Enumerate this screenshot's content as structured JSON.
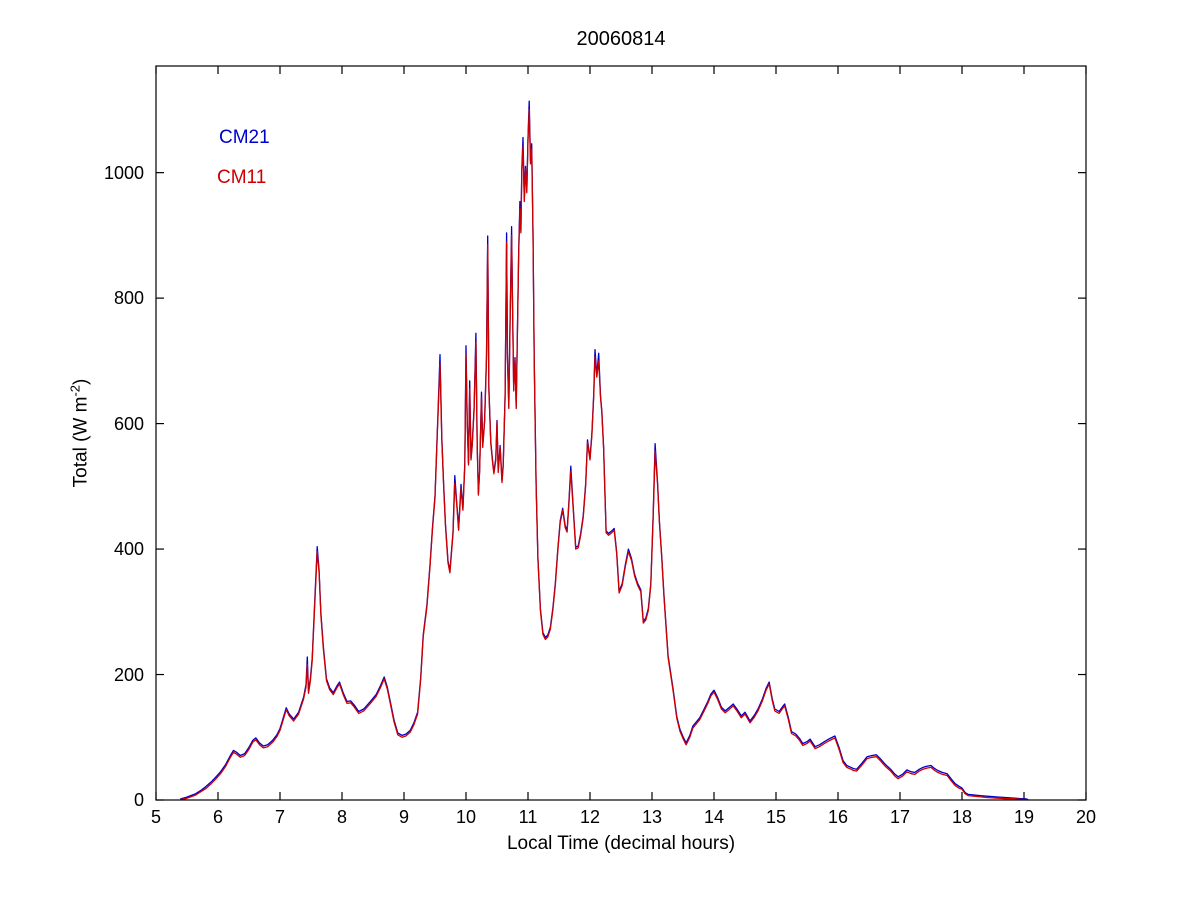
{
  "figure": {
    "title": "20060814",
    "xlabel": "Local Time (decimal hours)",
    "ylabel_main": "Total (W m",
    "ylabel_sup": "-2",
    "ylabel_end": ")",
    "background_color": "#ffffff",
    "axis_color": "#000000"
  },
  "legend": {
    "entries": [
      {
        "label": "CM21",
        "color": "#0000CC"
      },
      {
        "label": "CM11",
        "color": "#CC0000"
      }
    ]
  },
  "chart_data": {
    "type": "line",
    "title": "20060814",
    "xlabel": "Local Time (decimal hours)",
    "ylabel": "Total (W m^-2)",
    "xlim": [
      5,
      20
    ],
    "ylim": [
      0,
      1170
    ],
    "xticks": [
      5,
      6,
      7,
      8,
      9,
      10,
      11,
      12,
      13,
      14,
      15,
      16,
      17,
      18,
      19,
      20
    ],
    "yticks": [
      0,
      200,
      400,
      600,
      800,
      1000
    ],
    "grid": false,
    "tick_direction": "in",
    "box": true,
    "legend_position": "upper-left-inside",
    "series_names": [
      "CM21",
      "CM11"
    ],
    "series_colors": [
      "#0000CC",
      "#CC0000"
    ],
    "points_format": [
      "time_decimal_hours",
      "CM11_W_m2",
      "CM21_W_m2"
    ],
    "points": [
      [
        5.4,
        1,
        2
      ],
      [
        5.48,
        2,
        4
      ],
      [
        5.56,
        5,
        7
      ],
      [
        5.64,
        8,
        10
      ],
      [
        5.72,
        13,
        15
      ],
      [
        5.8,
        18,
        21
      ],
      [
        5.88,
        25,
        28
      ],
      [
        5.96,
        33,
        36
      ],
      [
        6.04,
        42,
        45
      ],
      [
        6.12,
        53,
        56
      ],
      [
        6.2,
        68,
        71
      ],
      [
        6.25,
        76,
        79
      ],
      [
        6.3,
        73,
        76
      ],
      [
        6.36,
        68,
        71
      ],
      [
        6.43,
        71,
        74
      ],
      [
        6.5,
        81,
        84
      ],
      [
        6.56,
        92,
        95
      ],
      [
        6.61,
        96,
        99
      ],
      [
        6.67,
        88,
        91
      ],
      [
        6.73,
        83,
        86
      ],
      [
        6.8,
        85,
        88
      ],
      [
        6.88,
        92,
        95
      ],
      [
        6.95,
        101,
        104
      ],
      [
        7.0,
        111,
        114
      ],
      [
        7.05,
        127,
        130
      ],
      [
        7.1,
        144,
        147
      ],
      [
        7.15,
        134,
        137
      ],
      [
        7.22,
        126,
        129
      ],
      [
        7.3,
        137,
        140
      ],
      [
        7.38,
        161,
        164
      ],
      [
        7.42,
        180,
        184
      ],
      [
        7.44,
        216,
        228
      ],
      [
        7.46,
        170,
        174
      ],
      [
        7.49,
        190,
        194
      ],
      [
        7.52,
        222,
        226
      ],
      [
        7.56,
        310,
        316
      ],
      [
        7.6,
        396,
        404
      ],
      [
        7.63,
        362,
        366
      ],
      [
        7.66,
        294,
        298
      ],
      [
        7.7,
        240,
        244
      ],
      [
        7.75,
        190,
        193
      ],
      [
        7.8,
        176,
        179
      ],
      [
        7.86,
        168,
        171
      ],
      [
        7.92,
        179,
        182
      ],
      [
        7.96,
        185,
        188
      ],
      [
        8.02,
        168,
        171
      ],
      [
        8.08,
        154,
        157
      ],
      [
        8.14,
        155,
        158
      ],
      [
        8.2,
        148,
        151
      ],
      [
        8.27,
        138,
        141
      ],
      [
        8.35,
        142,
        145
      ],
      [
        8.45,
        153,
        156
      ],
      [
        8.55,
        165,
        168
      ],
      [
        8.62,
        179,
        182
      ],
      [
        8.68,
        193,
        196
      ],
      [
        8.73,
        177,
        180
      ],
      [
        8.78,
        153,
        156
      ],
      [
        8.84,
        124,
        127
      ],
      [
        8.9,
        104,
        107
      ],
      [
        8.97,
        100,
        103
      ],
      [
        9.03,
        102,
        105
      ],
      [
        9.1,
        108,
        111
      ],
      [
        9.16,
        120,
        123
      ],
      [
        9.22,
        137,
        140
      ],
      [
        9.27,
        192,
        195
      ],
      [
        9.31,
        260,
        263
      ],
      [
        9.37,
        308,
        311
      ],
      [
        9.42,
        372,
        375
      ],
      [
        9.46,
        432,
        435
      ],
      [
        9.5,
        482,
        485
      ],
      [
        9.54,
        592,
        596
      ],
      [
        9.58,
        695,
        710
      ],
      [
        9.61,
        574,
        578
      ],
      [
        9.64,
        498,
        501
      ],
      [
        9.67,
        436,
        439
      ],
      [
        9.71,
        378,
        381
      ],
      [
        9.74,
        362,
        365
      ],
      [
        9.79,
        424,
        427
      ],
      [
        9.82,
        505,
        517
      ],
      [
        9.85,
        472,
        475
      ],
      [
        9.88,
        430,
        433
      ],
      [
        9.92,
        497,
        503
      ],
      [
        9.95,
        462,
        465
      ],
      [
        9.98,
        532,
        536
      ],
      [
        10.0,
        710,
        724
      ],
      [
        10.02,
        602,
        606
      ],
      [
        10.04,
        534,
        537
      ],
      [
        10.06,
        656,
        668
      ],
      [
        10.08,
        542,
        545
      ],
      [
        10.1,
        564,
        567
      ],
      [
        10.13,
        622,
        626
      ],
      [
        10.16,
        730,
        744
      ],
      [
        10.18,
        562,
        566
      ],
      [
        10.2,
        486,
        489
      ],
      [
        10.22,
        522,
        525
      ],
      [
        10.25,
        642,
        650
      ],
      [
        10.27,
        562,
        565
      ],
      [
        10.3,
        602,
        605
      ],
      [
        10.33,
        702,
        708
      ],
      [
        10.35,
        885,
        899
      ],
      [
        10.37,
        652,
        656
      ],
      [
        10.4,
        568,
        571
      ],
      [
        10.43,
        536,
        539
      ],
      [
        10.45,
        520,
        523
      ],
      [
        10.48,
        542,
        545
      ],
      [
        10.5,
        602,
        605
      ],
      [
        10.52,
        522,
        525
      ],
      [
        10.55,
        562,
        565
      ],
      [
        10.58,
        506,
        509
      ],
      [
        10.6,
        532,
        535
      ],
      [
        10.63,
        642,
        646
      ],
      [
        10.655,
        890,
        904
      ],
      [
        10.67,
        702,
        706
      ],
      [
        10.69,
        624,
        627
      ],
      [
        10.71,
        752,
        756
      ],
      [
        10.735,
        900,
        914
      ],
      [
        10.75,
        792,
        796
      ],
      [
        10.77,
        652,
        655
      ],
      [
        10.79,
        702,
        705
      ],
      [
        10.81,
        624,
        627
      ],
      [
        10.83,
        752,
        756
      ],
      [
        10.85,
        872,
        876
      ],
      [
        10.87,
        942,
        954
      ],
      [
        10.885,
        904,
        907
      ],
      [
        10.9,
        1002,
        1006
      ],
      [
        10.92,
        1042,
        1056
      ],
      [
        10.94,
        954,
        957
      ],
      [
        10.96,
        1006,
        1010
      ],
      [
        10.98,
        968,
        971
      ],
      [
        11.0,
        1052,
        1056
      ],
      [
        11.02,
        1100,
        1114
      ],
      [
        11.04,
        1014,
        1018
      ],
      [
        11.06,
        1038,
        1046
      ],
      [
        11.08,
        902,
        905
      ],
      [
        11.1,
        702,
        705
      ],
      [
        11.13,
        502,
        505
      ],
      [
        11.16,
        384,
        387
      ],
      [
        11.2,
        302,
        305
      ],
      [
        11.24,
        264,
        267
      ],
      [
        11.28,
        256,
        259
      ],
      [
        11.32,
        260,
        263
      ],
      [
        11.36,
        272,
        275
      ],
      [
        11.4,
        302,
        305
      ],
      [
        11.44,
        342,
        345
      ],
      [
        11.48,
        397,
        400
      ],
      [
        11.52,
        442,
        445
      ],
      [
        11.56,
        462,
        465
      ],
      [
        11.6,
        434,
        437
      ],
      [
        11.63,
        427,
        430
      ],
      [
        11.66,
        472,
        475
      ],
      [
        11.69,
        524,
        532
      ],
      [
        11.73,
        462,
        465
      ],
      [
        11.77,
        400,
        403
      ],
      [
        11.81,
        402,
        405
      ],
      [
        11.85,
        422,
        425
      ],
      [
        11.89,
        450,
        453
      ],
      [
        11.93,
        502,
        505
      ],
      [
        11.96,
        570,
        574
      ],
      [
        12.0,
        542,
        545
      ],
      [
        12.03,
        582,
        585
      ],
      [
        12.06,
        642,
        646
      ],
      [
        12.08,
        706,
        718
      ],
      [
        12.11,
        674,
        677
      ],
      [
        12.14,
        700,
        712
      ],
      [
        12.17,
        642,
        645
      ],
      [
        12.19,
        618,
        621
      ],
      [
        12.22,
        560,
        563
      ],
      [
        12.26,
        426,
        429
      ],
      [
        12.3,
        422,
        425
      ],
      [
        12.35,
        426,
        429
      ],
      [
        12.39,
        430,
        433
      ],
      [
        12.43,
        392,
        395
      ],
      [
        12.47,
        330,
        333
      ],
      [
        12.52,
        342,
        345
      ],
      [
        12.57,
        372,
        375
      ],
      [
        12.62,
        396,
        400
      ],
      [
        12.67,
        382,
        385
      ],
      [
        12.72,
        357,
        360
      ],
      [
        12.77,
        342,
        345
      ],
      [
        12.82,
        332,
        335
      ],
      [
        12.86,
        282,
        285
      ],
      [
        12.9,
        287,
        290
      ],
      [
        12.94,
        302,
        305
      ],
      [
        12.98,
        342,
        345
      ],
      [
        13.02,
        452,
        456
      ],
      [
        13.05,
        556,
        568
      ],
      [
        13.09,
        502,
        505
      ],
      [
        13.12,
        442,
        445
      ],
      [
        13.16,
        382,
        385
      ],
      [
        13.19,
        328,
        331
      ],
      [
        13.26,
        227,
        230
      ],
      [
        13.34,
        174,
        177
      ],
      [
        13.4,
        130,
        133
      ],
      [
        13.45,
        110,
        113
      ],
      [
        13.5,
        98,
        101
      ],
      [
        13.55,
        88,
        91
      ],
      [
        13.61,
        100,
        103
      ],
      [
        13.66,
        115,
        118
      ],
      [
        13.72,
        122,
        125
      ],
      [
        13.77,
        128,
        131
      ],
      [
        13.83,
        140,
        143
      ],
      [
        13.9,
        154,
        157
      ],
      [
        13.95,
        166,
        169
      ],
      [
        14.0,
        172,
        175
      ],
      [
        14.06,
        160,
        163
      ],
      [
        14.12,
        145,
        148
      ],
      [
        14.18,
        139,
        142
      ],
      [
        14.24,
        144,
        147
      ],
      [
        14.31,
        150,
        153
      ],
      [
        14.37,
        142,
        145
      ],
      [
        14.44,
        131,
        134
      ],
      [
        14.5,
        137,
        140
      ],
      [
        14.58,
        123,
        126
      ],
      [
        14.65,
        132,
        135
      ],
      [
        14.71,
        142,
        145
      ],
      [
        14.78,
        158,
        161
      ],
      [
        14.84,
        175,
        178
      ],
      [
        14.89,
        185,
        188
      ],
      [
        14.94,
        158,
        161
      ],
      [
        14.98,
        142,
        145
      ],
      [
        15.05,
        138,
        141
      ],
      [
        15.1,
        145,
        148
      ],
      [
        15.14,
        150,
        153
      ],
      [
        15.2,
        128,
        131
      ],
      [
        15.25,
        106,
        109
      ],
      [
        15.32,
        102,
        105
      ],
      [
        15.38,
        95,
        98
      ],
      [
        15.43,
        87,
        90
      ],
      [
        15.5,
        90,
        93
      ],
      [
        15.55,
        94,
        97
      ],
      [
        15.63,
        82,
        85
      ],
      [
        15.7,
        85,
        88
      ],
      [
        15.78,
        90,
        93
      ],
      [
        15.85,
        94,
        97
      ],
      [
        15.95,
        99,
        102
      ],
      [
        16.02,
        80,
        83
      ],
      [
        16.08,
        60,
        63
      ],
      [
        16.14,
        52,
        55
      ],
      [
        16.19,
        50,
        53
      ],
      [
        16.25,
        47,
        50
      ],
      [
        16.3,
        46,
        49
      ],
      [
        16.38,
        55,
        58
      ],
      [
        16.47,
        66,
        69
      ],
      [
        16.55,
        68,
        71
      ],
      [
        16.62,
        69,
        72
      ],
      [
        16.68,
        63,
        66
      ],
      [
        16.76,
        54,
        57
      ],
      [
        16.85,
        46,
        49
      ],
      [
        16.92,
        38,
        41
      ],
      [
        16.97,
        34,
        37
      ],
      [
        17.04,
        38,
        41
      ],
      [
        17.11,
        45,
        48
      ],
      [
        17.18,
        42,
        45
      ],
      [
        17.24,
        41,
        44
      ],
      [
        17.31,
        46,
        49
      ],
      [
        17.37,
        49,
        52
      ],
      [
        17.44,
        51,
        54
      ],
      [
        17.5,
        52,
        55
      ],
      [
        17.56,
        47,
        50
      ],
      [
        17.61,
        44,
        47
      ],
      [
        17.68,
        41,
        44
      ],
      [
        17.76,
        39,
        42
      ],
      [
        17.83,
        30,
        33
      ],
      [
        17.89,
        23,
        26
      ],
      [
        17.95,
        19,
        22
      ],
      [
        18.0,
        17,
        19
      ],
      [
        18.05,
        10,
        12
      ],
      [
        18.1,
        7,
        9
      ],
      [
        18.2,
        6,
        8
      ],
      [
        18.3,
        5,
        7
      ],
      [
        18.4,
        4,
        6
      ],
      [
        18.55,
        3,
        5
      ],
      [
        18.7,
        2,
        4
      ],
      [
        18.85,
        2,
        3
      ],
      [
        18.95,
        1,
        2
      ],
      [
        19.02,
        1,
        2
      ],
      [
        19.06,
        0,
        1
      ]
    ]
  }
}
